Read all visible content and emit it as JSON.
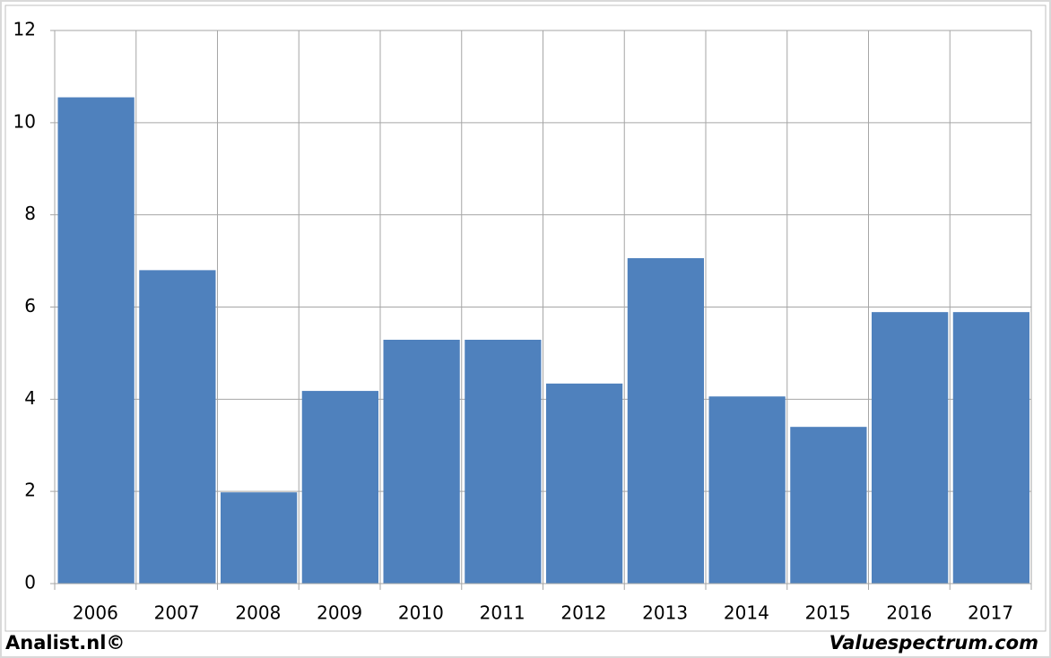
{
  "chart_data": {
    "type": "bar",
    "categories": [
      "2006",
      "2007",
      "2008",
      "2009",
      "2010",
      "2011",
      "2012",
      "2013",
      "2014",
      "2015",
      "2016",
      "2017"
    ],
    "values": [
      10.55,
      6.8,
      1.98,
      4.18,
      5.29,
      5.29,
      4.34,
      7.06,
      4.06,
      3.4,
      5.89,
      5.89
    ],
    "color": "#4f81bd",
    "ylim": [
      0,
      12
    ],
    "yticks": [
      0,
      2,
      4,
      6,
      8,
      10,
      12
    ],
    "grid": true,
    "annotations": [
      "Analist.nl©",
      "Valuespectrum.com"
    ]
  }
}
